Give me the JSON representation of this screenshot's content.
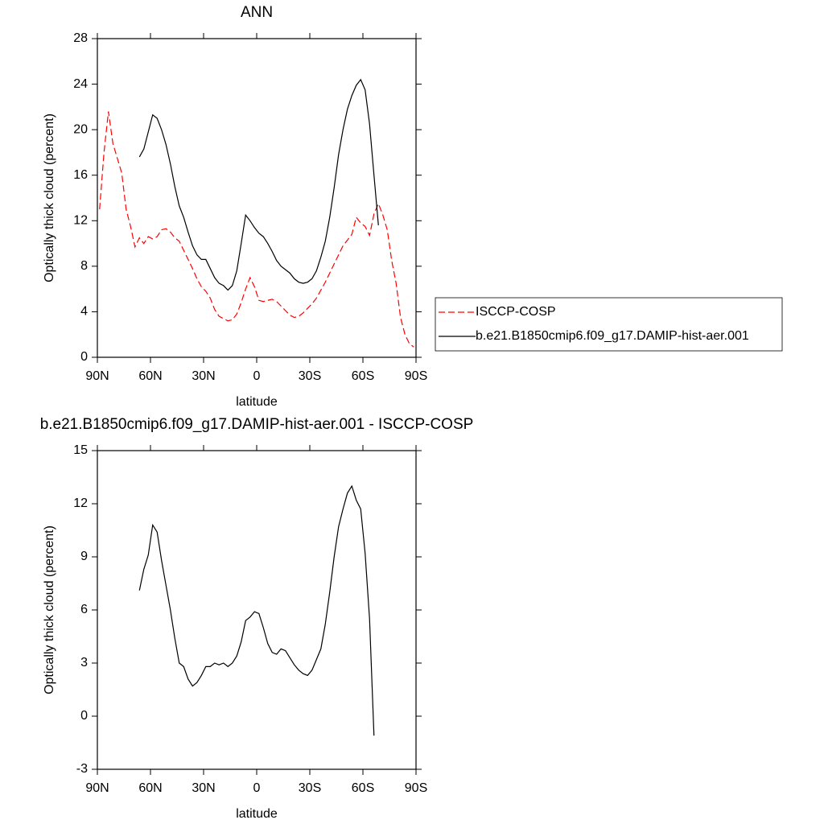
{
  "chart_data": [
    {
      "type": "line",
      "title": "ANN",
      "x_label": "latitude",
      "y_label": "Optically thick cloud (percent)",
      "x": [
        88.75,
        86.25,
        83.75,
        81.25,
        78.75,
        76.25,
        73.75,
        71.25,
        68.75,
        66.25,
        63.75,
        61.25,
        58.75,
        56.25,
        53.75,
        51.25,
        48.75,
        46.25,
        43.75,
        41.25,
        38.75,
        36.25,
        33.75,
        31.25,
        28.75,
        26.25,
        23.75,
        21.25,
        18.75,
        16.25,
        13.75,
        11.25,
        8.75,
        6.25,
        3.75,
        1.25,
        -1.25,
        -3.75,
        -6.25,
        -8.75,
        -11.25,
        -13.75,
        -16.25,
        -18.75,
        -21.25,
        -23.75,
        -26.25,
        -28.75,
        -31.25,
        -33.75,
        -36.25,
        -38.75,
        -41.25,
        -43.75,
        -46.25,
        -48.75,
        -51.25,
        -53.75,
        -56.25,
        -58.75,
        -61.25,
        -63.75,
        -66.25,
        -68.75,
        -71.25,
        -73.75,
        -76.25,
        -78.75,
        -81.25,
        -83.75,
        -86.25,
        -88.75
      ],
      "xlim": [
        90,
        -90
      ],
      "xticks": [
        {
          "value": 90,
          "label": "90N"
        },
        {
          "value": 60,
          "label": "60N"
        },
        {
          "value": 30,
          "label": "30N"
        },
        0,
        {
          "value": -30,
          "label": "30S"
        },
        {
          "value": -60,
          "label": "60S"
        },
        {
          "value": -90,
          "label": "90S"
        }
      ],
      "ylim": [
        0,
        28
      ],
      "yticks": [
        0,
        4,
        8,
        12,
        16,
        20,
        24,
        28
      ],
      "legend": "right",
      "series": [
        {
          "name": "ISCCP-COSP",
          "color": "#ff0000",
          "dash": true,
          "values": [
            13,
            18,
            21.6,
            18.8,
            17.5,
            16.2,
            13,
            11.5,
            9.7,
            10.5,
            10,
            10.6,
            10.4,
            10.6,
            11.2,
            11.3,
            11,
            10.5,
            10.2,
            9.4,
            8.6,
            7.8,
            6.9,
            6.2,
            5.8,
            5.2,
            4.2,
            3.6,
            3.4,
            3.2,
            3.3,
            3.8,
            4.8,
            6,
            7,
            6.2,
            5,
            4.9,
            5,
            5.1,
            4.9,
            4.5,
            4.1,
            3.7,
            3.5,
            3.6,
            3.9,
            4.3,
            4.7,
            5.2,
            5.9,
            6.6,
            7.4,
            8.2,
            9,
            9.8,
            10.3,
            10.8,
            12.3,
            11.8,
            11.5,
            10.7,
            12.6,
            13.5,
            12.5,
            11.2,
            8.5,
            6.5,
            3.5,
            2,
            1.2,
            0.9
          ]
        },
        {
          "name": "b.e21.B1850cmip6.f09_g17.DAMIP-hist-aer.001",
          "color": "#000000",
          "dash": false,
          "values": [
            null,
            null,
            null,
            null,
            null,
            null,
            null,
            null,
            null,
            17.6,
            18.3,
            19.8,
            21.3,
            21,
            20,
            18.7,
            17,
            15,
            13.3,
            12.3,
            11,
            9.8,
            9,
            8.6,
            8.6,
            7.8,
            7,
            6.5,
            6.3,
            5.9,
            6.3,
            7.6,
            10,
            12.5,
            12,
            11.4,
            10.9,
            10.6,
            10,
            9.3,
            8.5,
            8,
            7.7,
            7.4,
            6.9,
            6.6,
            6.5,
            6.6,
            6.9,
            7.6,
            8.8,
            10.2,
            12.3,
            14.9,
            17.8,
            20,
            21.8,
            23,
            23.9,
            24.4,
            23.5,
            20.5,
            16,
            11.6,
            null,
            null,
            null,
            null,
            null,
            null,
            null,
            null
          ]
        }
      ]
    },
    {
      "type": "line",
      "title": "b.e21.B1850cmip6.f09_g17.DAMIP-hist-aer.001 - ISCCP-COSP",
      "x_label": "latitude",
      "y_label": "Optically thick cloud (percent)",
      "x": [
        88.75,
        86.25,
        83.75,
        81.25,
        78.75,
        76.25,
        73.75,
        71.25,
        68.75,
        66.25,
        63.75,
        61.25,
        58.75,
        56.25,
        53.75,
        51.25,
        48.75,
        46.25,
        43.75,
        41.25,
        38.75,
        36.25,
        33.75,
        31.25,
        28.75,
        26.25,
        23.75,
        21.25,
        18.75,
        16.25,
        13.75,
        11.25,
        8.75,
        6.25,
        3.75,
        1.25,
        -1.25,
        -3.75,
        -6.25,
        -8.75,
        -11.25,
        -13.75,
        -16.25,
        -18.75,
        -21.25,
        -23.75,
        -26.25,
        -28.75,
        -31.25,
        -33.75,
        -36.25,
        -38.75,
        -41.25,
        -43.75,
        -46.25,
        -48.75,
        -51.25,
        -53.75,
        -56.25,
        -58.75,
        -61.25,
        -63.75,
        -66.25,
        -68.75,
        -71.25,
        -73.75,
        -76.25,
        -78.75,
        -81.25,
        -83.75,
        -86.25,
        -88.75
      ],
      "xlim": [
        90,
        -90
      ],
      "xticks": [
        {
          "value": 90,
          "label": "90N"
        },
        {
          "value": 60,
          "label": "60N"
        },
        {
          "value": 30,
          "label": "30N"
        },
        0,
        {
          "value": -30,
          "label": "30S"
        },
        {
          "value": -60,
          "label": "60S"
        },
        {
          "value": -90,
          "label": "90S"
        }
      ],
      "ylim": [
        -3,
        15
      ],
      "yticks": [
        -3,
        0,
        3,
        6,
        9,
        12,
        15
      ],
      "series": [
        {
          "color": "#000000",
          "dash": false,
          "values": [
            null,
            null,
            null,
            null,
            null,
            null,
            null,
            null,
            null,
            7.1,
            8.3,
            9.1,
            10.8,
            10.4,
            8.8,
            7.4,
            6,
            4.4,
            3,
            2.8,
            2.1,
            1.7,
            1.9,
            2.3,
            2.8,
            2.8,
            3,
            2.9,
            3,
            2.8,
            3,
            3.4,
            4.2,
            5.4,
            5.6,
            5.9,
            5.8,
            5,
            4.1,
            3.6,
            3.5,
            3.8,
            3.7,
            3.3,
            2.9,
            2.6,
            2.4,
            2.3,
            2.6,
            3.2,
            3.8,
            5.2,
            7,
            9,
            10.7,
            11.7,
            12.6,
            13,
            12.2,
            11.7,
            9.2,
            5.5,
            -1.1,
            null,
            null,
            null,
            null,
            null,
            null,
            null,
            null,
            null
          ]
        }
      ]
    }
  ]
}
